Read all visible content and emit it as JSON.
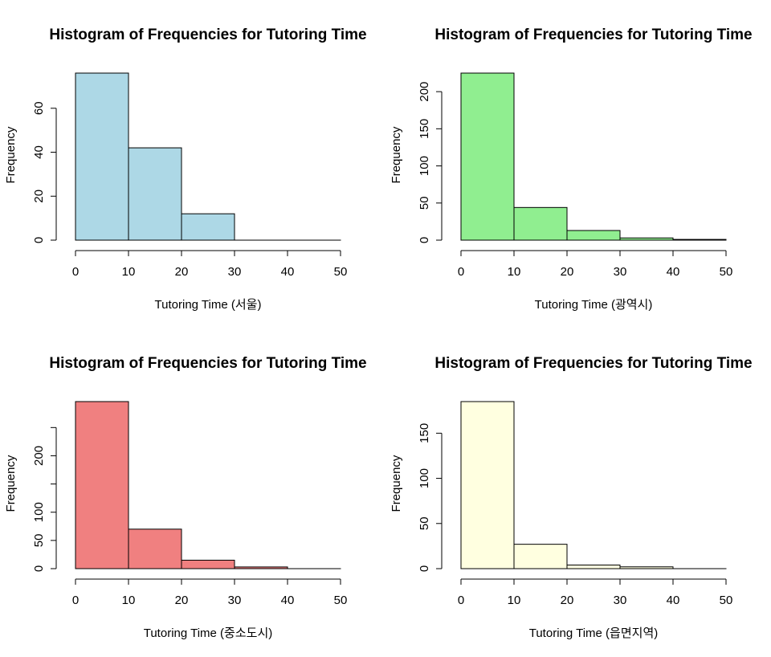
{
  "chart_data": [
    {
      "type": "bar",
      "title": "Histogram of Frequencies for Tutoring Time",
      "xlabel": "Tutoring Time (서울)",
      "ylabel": "Frequency",
      "bins": [
        [
          0,
          10
        ],
        [
          10,
          20
        ],
        [
          20,
          30
        ],
        [
          30,
          40
        ],
        [
          40,
          50
        ]
      ],
      "values": [
        76,
        42,
        12,
        0,
        0
      ],
      "xlim": [
        0,
        50
      ],
      "xticks": [
        0,
        10,
        20,
        30,
        40,
        50
      ],
      "yticks": [
        0,
        20,
        40,
        60
      ],
      "ylim": [
        0,
        76
      ],
      "color": "#add8e6"
    },
    {
      "type": "bar",
      "title": "Histogram of Frequencies for Tutoring Time",
      "xlabel": "Tutoring Time (광역시)",
      "ylabel": "Frequency",
      "bins": [
        [
          0,
          10
        ],
        [
          10,
          20
        ],
        [
          20,
          30
        ],
        [
          30,
          40
        ],
        [
          40,
          50
        ]
      ],
      "values": [
        225,
        44,
        13,
        3,
        1
      ],
      "xlim": [
        0,
        50
      ],
      "xticks": [
        0,
        10,
        20,
        30,
        40,
        50
      ],
      "yticks": [
        0,
        50,
        100,
        150,
        200
      ],
      "ylim": [
        0,
        225
      ],
      "color": "#90ee90"
    },
    {
      "type": "bar",
      "title": "Histogram of Frequencies for Tutoring Time",
      "xlabel": "Tutoring Time (중소도시)",
      "ylabel": "Frequency",
      "bins": [
        [
          0,
          10
        ],
        [
          10,
          20
        ],
        [
          20,
          30
        ],
        [
          30,
          40
        ],
        [
          40,
          50
        ]
      ],
      "values": [
        296,
        70,
        15,
        3,
        0
      ],
      "xlim": [
        0,
        50
      ],
      "xticks": [
        0,
        10,
        20,
        30,
        40,
        50
      ],
      "yticks": [
        0,
        50,
        100,
        150,
        200,
        250
      ],
      "ytick_labels": [
        "0",
        "50",
        "100",
        "",
        "200",
        ""
      ],
      "ylim": [
        0,
        296
      ],
      "color": "#f08080"
    },
    {
      "type": "bar",
      "title": "Histogram of Frequencies for Tutoring Time",
      "xlabel": "Tutoring Time (읍면지역)",
      "ylabel": "Frequency",
      "bins": [
        [
          0,
          10
        ],
        [
          10,
          20
        ],
        [
          20,
          30
        ],
        [
          30,
          40
        ],
        [
          40,
          50
        ]
      ],
      "values": [
        185,
        27,
        4,
        2,
        0
      ],
      "xlim": [
        0,
        50
      ],
      "xticks": [
        0,
        10,
        20,
        30,
        40,
        50
      ],
      "yticks": [
        0,
        50,
        100,
        150
      ],
      "ylim": [
        0,
        185
      ],
      "color": "#ffffe0"
    }
  ]
}
